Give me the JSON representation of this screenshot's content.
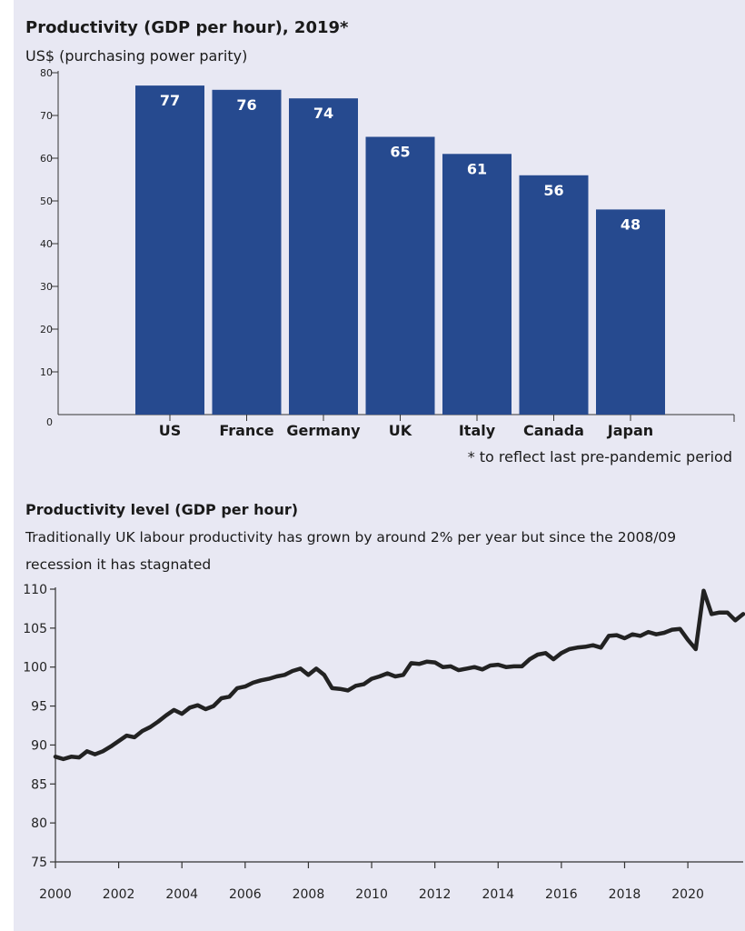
{
  "chart_data": [
    {
      "type": "bar",
      "title": "Productivity (GDP per hour), 2019*",
      "subtitle": "US$ (purchasing power parity)",
      "categories": [
        "US",
        "France",
        "Germany",
        "UK",
        "Italy",
        "Canada",
        "Japan"
      ],
      "values": [
        77,
        76,
        74,
        65,
        61,
        56,
        48
      ],
      "data_labels": [
        "77",
        "76",
        "74",
        "65",
        "61",
        "56",
        "48"
      ],
      "ylim": [
        0,
        80
      ],
      "yticks": [
        0,
        10,
        20,
        30,
        40,
        50,
        60,
        70,
        80
      ],
      "bar_color": "#264a8f",
      "footnote": "* to reflect last pre-pandemic period",
      "grid": false
    },
    {
      "type": "line",
      "title": "Productivity level (GDP per hour)",
      "subtitle_lines": [
        "Traditionally UK labour productivity has grown by around 2% per year but since the 2008/09",
        "recession it has stagnated"
      ],
      "ylim": [
        75,
        110
      ],
      "yticks": [
        75,
        80,
        85,
        90,
        95,
        100,
        105,
        110
      ],
      "xlim": [
        2000,
        2021.75
      ],
      "xticks": [
        2000,
        2002,
        2004,
        2006,
        2008,
        2010,
        2012,
        2014,
        2016,
        2018,
        2020
      ],
      "line_color": "#222222",
      "grid": false,
      "series": [
        {
          "x": [
            2000,
            2000.25,
            2000.5,
            2000.75,
            2001,
            2001.25,
            2001.5,
            2001.75,
            2002,
            2002.25,
            2002.5,
            2002.75,
            2003,
            2003.25,
            2003.5,
            2003.75,
            2004,
            2004.25,
            2004.5,
            2004.75,
            2005,
            2005.25,
            2005.5,
            2005.75,
            2006,
            2006.25,
            2006.5,
            2006.75,
            2007,
            2007.25,
            2007.5,
            2007.75,
            2008,
            2008.25,
            2008.5,
            2008.75,
            2009,
            2009.25,
            2009.5,
            2009.75,
            2010,
            2010.25,
            2010.5,
            2010.75,
            2011,
            2011.25,
            2011.5,
            2011.75,
            2012,
            2012.25,
            2012.5,
            2012.75,
            2013,
            2013.25,
            2013.5,
            2013.75,
            2014,
            2014.25,
            2014.5,
            2014.75,
            2015,
            2015.25,
            2015.5,
            2015.75,
            2016,
            2016.25,
            2016.5,
            2016.75,
            2017,
            2017.25,
            2017.5,
            2017.75,
            2018,
            2018.25,
            2018.5,
            2018.75,
            2019,
            2019.25,
            2019.5,
            2019.75,
            2020,
            2020.25,
            2020.5,
            2020.75,
            2021,
            2021.25,
            2021.5,
            2021.75
          ],
          "y": [
            88.5,
            88.2,
            88.5,
            88.4,
            89.2,
            88.8,
            89.2,
            89.8,
            90.5,
            91.2,
            91.0,
            91.8,
            92.3,
            93.0,
            93.8,
            94.5,
            94.0,
            94.8,
            95.1,
            94.6,
            95.0,
            96.0,
            96.2,
            97.3,
            97.5,
            98.0,
            98.3,
            98.5,
            98.8,
            99.0,
            99.5,
            99.8,
            99.0,
            99.8,
            99.0,
            97.3,
            97.2,
            97.0,
            97.6,
            97.8,
            98.5,
            98.8,
            99.2,
            98.8,
            99.0,
            100.5,
            100.4,
            100.7,
            100.6,
            100.0,
            100.1,
            99.6,
            99.8,
            100.0,
            99.7,
            100.2,
            100.3,
            100.0,
            100.1,
            100.1,
            101.0,
            101.6,
            101.8,
            101.0,
            101.8,
            102.3,
            102.5,
            102.6,
            102.8,
            102.5,
            104.0,
            104.1,
            103.7,
            104.2,
            104.0,
            104.5,
            104.2,
            104.4,
            104.8,
            104.9,
            103.5,
            102.3,
            109.8,
            106.8,
            107.0,
            107.0,
            106.0,
            106.8
          ]
        }
      ]
    }
  ]
}
